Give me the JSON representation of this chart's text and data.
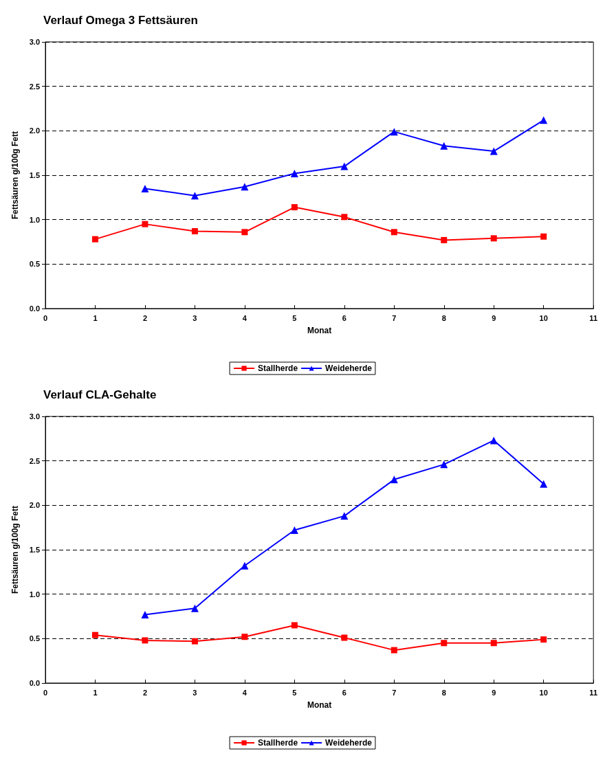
{
  "chart_data": [
    {
      "type": "line",
      "title": "Verlauf Omega 3 Fettsäuren",
      "xlabel": "Monat",
      "ylabel": "Fettsäuren g/100g Fett",
      "xlim": [
        0,
        11
      ],
      "xticks": [
        0,
        1,
        2,
        3,
        4,
        5,
        6,
        7,
        8,
        9,
        10,
        11
      ],
      "ylim": [
        0,
        3
      ],
      "yticks": [
        {
          "value": 0,
          "label": "0.0"
        },
        0.5,
        {
          "value": 1,
          "label": "1.0"
        },
        1.5,
        {
          "value": 2,
          "label": "2.0"
        },
        2.5,
        {
          "value": 3,
          "label": "3.0"
        }
      ],
      "grid": "y",
      "legend": "bottom",
      "x": [
        1,
        2,
        3,
        4,
        5,
        6,
        7,
        8,
        9,
        10
      ],
      "series": [
        {
          "name": "Stallherde",
          "color": "#ff0000",
          "marker": "square",
          "values": [
            0.78,
            0.95,
            0.87,
            0.86,
            1.14,
            1.03,
            0.86,
            0.77,
            0.79,
            0.81
          ]
        },
        {
          "name": "Weideherde",
          "color": "#0000ff",
          "marker": "triangle",
          "values": [
            null,
            1.35,
            1.27,
            1.37,
            1.52,
            1.6,
            1.99,
            1.83,
            1.77,
            2.12
          ]
        }
      ]
    },
    {
      "type": "line",
      "title": "Verlauf CLA-Gehalte",
      "xlabel": "Monat",
      "ylabel": "Fettsäuren g/100g Fett",
      "xlim": [
        0,
        11
      ],
      "xticks": [
        0,
        1,
        2,
        3,
        4,
        5,
        6,
        7,
        8,
        9,
        10,
        11
      ],
      "ylim": [
        0,
        3
      ],
      "yticks": [
        {
          "value": 0,
          "label": "0.0"
        },
        0.5,
        {
          "value": 1,
          "label": "1.0"
        },
        1.5,
        {
          "value": 2,
          "label": "2.0"
        },
        2.5,
        {
          "value": 3,
          "label": "3.0"
        }
      ],
      "grid": "y",
      "legend": "bottom",
      "x": [
        1,
        2,
        3,
        4,
        5,
        6,
        7,
        8,
        9,
        10
      ],
      "series": [
        {
          "name": "Stallherde",
          "color": "#ff0000",
          "marker": "square",
          "values": [
            0.54,
            0.48,
            0.47,
            0.52,
            0.65,
            0.51,
            0.37,
            0.45,
            0.45,
            0.49
          ]
        },
        {
          "name": "Weideherde",
          "color": "#0000ff",
          "marker": "triangle",
          "values": [
            null,
            0.77,
            0.84,
            1.32,
            1.72,
            1.88,
            2.29,
            2.46,
            2.73,
            2.24
          ]
        }
      ]
    }
  ]
}
